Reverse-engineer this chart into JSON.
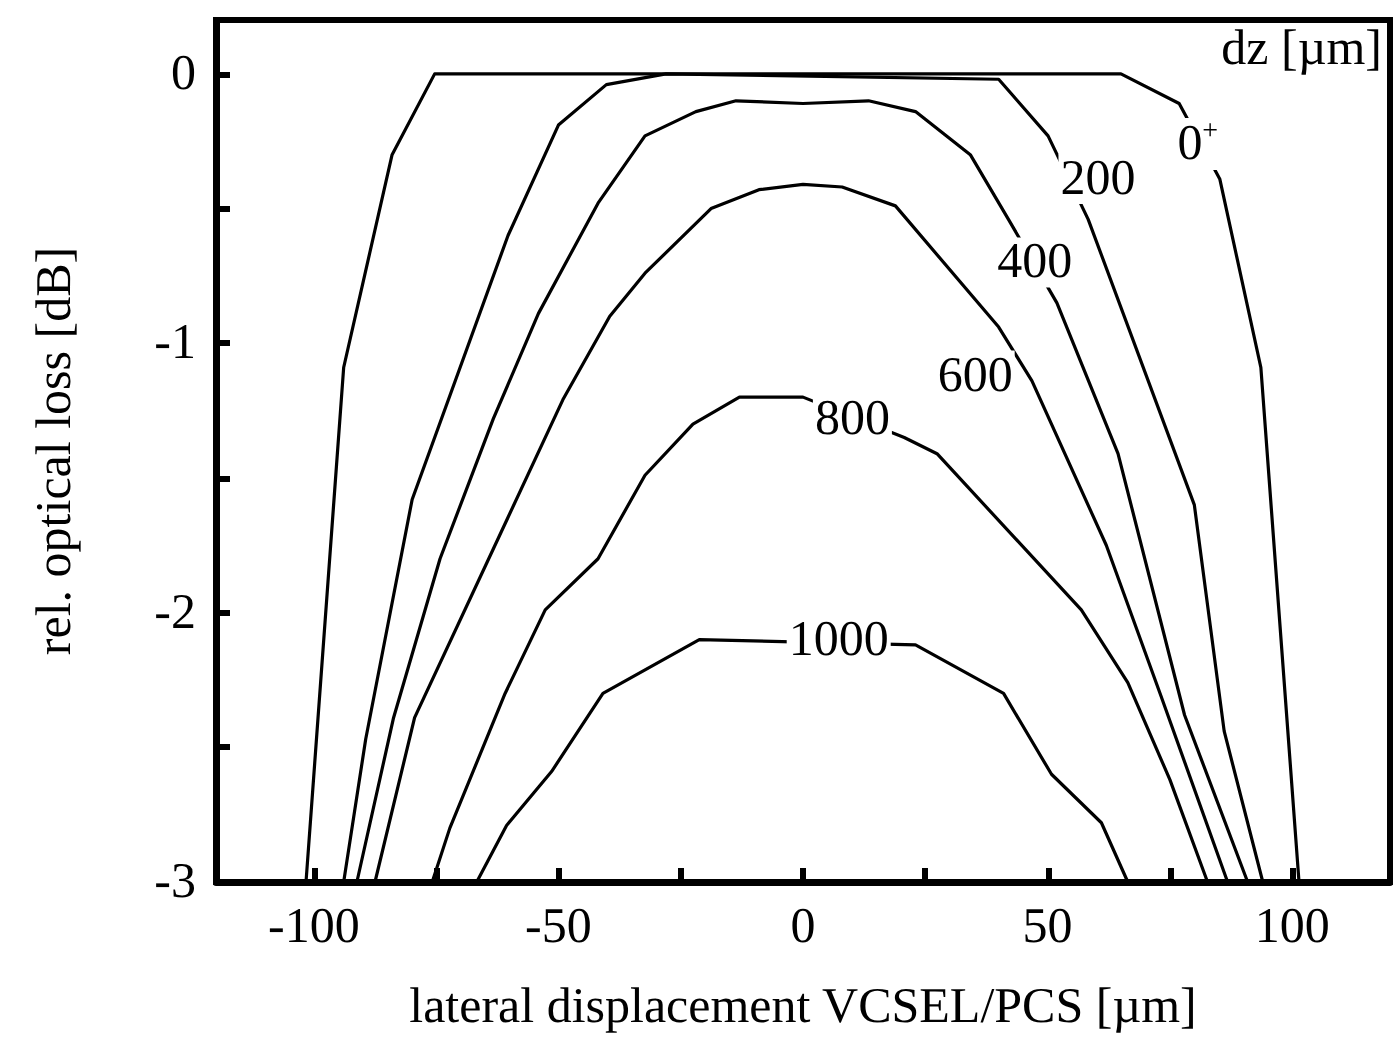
{
  "chart_data": {
    "type": "line",
    "xlabel": "lateral displacement VCSEL/PCS [µm]",
    "ylabel": "rel. optical loss [dB]",
    "legend_title": "dz [µm]",
    "xlim": [
      -120,
      120
    ],
    "ylim": [
      -3,
      0.2
    ],
    "xticks": [
      -100,
      {
        "value": -75,
        "label": null
      },
      -50,
      {
        "value": -25,
        "label": null
      },
      0,
      {
        "value": 25,
        "label": null
      },
      50,
      {
        "value": 75,
        "label": null
      },
      100
    ],
    "yticks": [
      -3,
      {
        "value": -2.5,
        "label": null
      },
      -2,
      {
        "value": -1.5,
        "label": null
      },
      -1,
      {
        "value": -0.5,
        "label": null
      },
      0
    ],
    "grid": false,
    "marker": "none",
    "line_style": "solid",
    "series": [
      {
        "color": "#000000",
        "x": [
          -101.6,
          -93.9,
          -84,
          -75.3,
          65,
          76.9,
          85.2,
          93.6,
          101.4
        ],
        "values": [
          -3,
          -1.09,
          -0.3,
          0,
          0,
          -0.11,
          -0.39,
          -1.09,
          -3
        ]
      },
      {
        "color": "#000000",
        "x": [
          -93.9,
          -89.4,
          -79.9,
          -60.3,
          -50,
          -40.2,
          -28,
          40,
          50.1,
          58.3,
          80,
          86.1,
          94
        ],
        "values": [
          -3,
          -2.47,
          -1.58,
          -0.6,
          -0.19,
          -0.04,
          0,
          -0.02,
          -0.23,
          -0.54,
          -1.6,
          -2.44,
          -3
        ]
      },
      {
        "color": "#000000",
        "x": [
          -91.2,
          -83.7,
          -74.2,
          -63.3,
          -54.1,
          -41.9,
          -32.3,
          -21.9,
          -13.7,
          0,
          13.4,
          23,
          34.2,
          42,
          51.9,
          64.4,
          78,
          90.9
        ],
        "values": [
          -3,
          -2.39,
          -1.8,
          -1.28,
          -0.89,
          -0.48,
          -0.23,
          -0.14,
          -0.1,
          -0.11,
          -0.1,
          -0.14,
          -0.3,
          -0.54,
          -0.85,
          -1.41,
          -2.38,
          -3
        ]
      },
      {
        "color": "#000000",
        "x": [
          -87.5,
          -79.4,
          -49.1,
          -39.5,
          -32.3,
          -18.8,
          -9,
          0,
          8,
          18.9,
          40,
          46.8,
          62,
          73,
          86.8
        ],
        "values": [
          -3,
          -2.39,
          -1.21,
          -0.9,
          -0.74,
          -0.5,
          -0.43,
          -0.41,
          -0.42,
          -0.49,
          -0.94,
          -1.14,
          -1.75,
          -2.3,
          -3
        ]
      },
      {
        "color": "#000000",
        "x": [
          -75.8,
          -72.2,
          -60.9,
          -52.7,
          -41.9,
          -32.3,
          -22.5,
          -13,
          0,
          20.7,
          27.4,
          56.9,
          66.4,
          75,
          82.7
        ],
        "values": [
          -3,
          -2.8,
          -2.3,
          -1.99,
          -1.8,
          -1.49,
          -1.3,
          -1.2,
          -1.2,
          -1.35,
          -1.41,
          -1.99,
          -2.26,
          -2.62,
          -3
        ]
      },
      {
        "color": "#000000",
        "x": [
          -66.7,
          -60.6,
          -51.4,
          -40.9,
          -21.2,
          23,
          41,
          50.8,
          61,
          66.4
        ],
        "values": [
          -3,
          -2.79,
          -2.59,
          -2.3,
          -2.1,
          -2.12,
          -2.3,
          -2.6,
          -2.78,
          -3
        ]
      }
    ],
    "annotations": [
      {
        "text": "0$^{+}$",
        "x": 80.7,
        "y": -0.26
      },
      {
        "text": "200",
        "x": 60.3,
        "y": -0.39
      },
      {
        "text": "400",
        "x": 47.4,
        "y": -0.7
      },
      {
        "text": "600",
        "x": 35.2,
        "y": -1.12
      },
      {
        "text": "800",
        "x": 10.1,
        "y": -1.28
      },
      {
        "text": "1000",
        "x": 7.3,
        "y": -2.1
      }
    ]
  }
}
